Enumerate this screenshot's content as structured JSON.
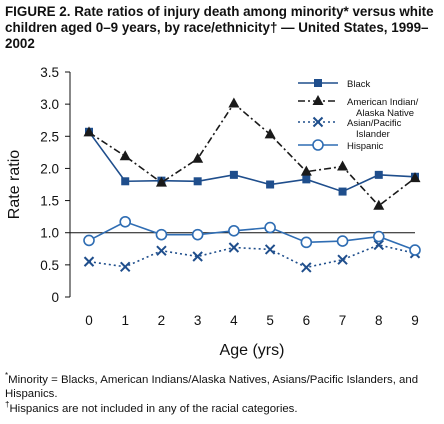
{
  "title": "FIGURE 2. Rate ratios of injury death among minority* versus white children aged 0–9 years, by race/ethnicity† — United States, 1999–2002",
  "footnotes": {
    "star_mark": "*",
    "star_text": "Minority = Blacks, American Indians/Alaska Natives, Asians/Pacific Islanders, and Hispanics.",
    "dagger_mark": "†",
    "dagger_text": "Hispanics are not included in any of the racial categories."
  },
  "chart_data": {
    "type": "line",
    "title": "FIGURE 2. Rate ratios of injury death among minority* versus white children aged 0–9 years, by race/ethnicity† — United States, 1999–2002",
    "xlabel": "Age (yrs)",
    "ylabel": "Rate ratio",
    "x": [
      0,
      1,
      2,
      3,
      4,
      5,
      6,
      7,
      8,
      9
    ],
    "ylim": [
      0,
      3.5
    ],
    "yticks": [
      "0",
      "0.5",
      "1.0",
      "1.5",
      "2.0",
      "2.5",
      "3.0",
      "3.5"
    ],
    "reference_line": 1.0,
    "grid": false,
    "legend_position": "top-right",
    "series": [
      {
        "name": "Black",
        "legend_lines": [
          "Black"
        ],
        "color": "#1f4e8c",
        "dash": "solid",
        "marker": "square",
        "values": [
          2.57,
          1.8,
          1.81,
          1.8,
          1.9,
          1.75,
          1.83,
          1.64,
          1.9,
          1.87
        ]
      },
      {
        "name": "American Indian/ Alaska Native",
        "legend_lines": [
          "American Indian/",
          "Alaska Native"
        ],
        "color": "#1a1a1a",
        "dash": "dashdot",
        "marker": "triangle",
        "values": [
          2.56,
          2.19,
          1.78,
          2.15,
          3.01,
          2.53,
          1.95,
          2.03,
          1.42,
          1.85
        ]
      },
      {
        "name": "Asian/Pacific Islander",
        "legend_lines": [
          "Asian/Pacific",
          "Islander"
        ],
        "color": "#1f4e8c",
        "dash": "dotted",
        "marker": "x",
        "values": [
          0.55,
          0.47,
          0.72,
          0.63,
          0.77,
          0.74,
          0.46,
          0.58,
          0.81,
          0.68
        ]
      },
      {
        "name": "Hispanic",
        "legend_lines": [
          "Hispanic"
        ],
        "color": "#2f6db3",
        "dash": "solid",
        "marker": "circle",
        "values": [
          0.88,
          1.17,
          0.97,
          0.97,
          1.03,
          1.08,
          0.85,
          0.87,
          0.94,
          0.73
        ]
      }
    ]
  }
}
